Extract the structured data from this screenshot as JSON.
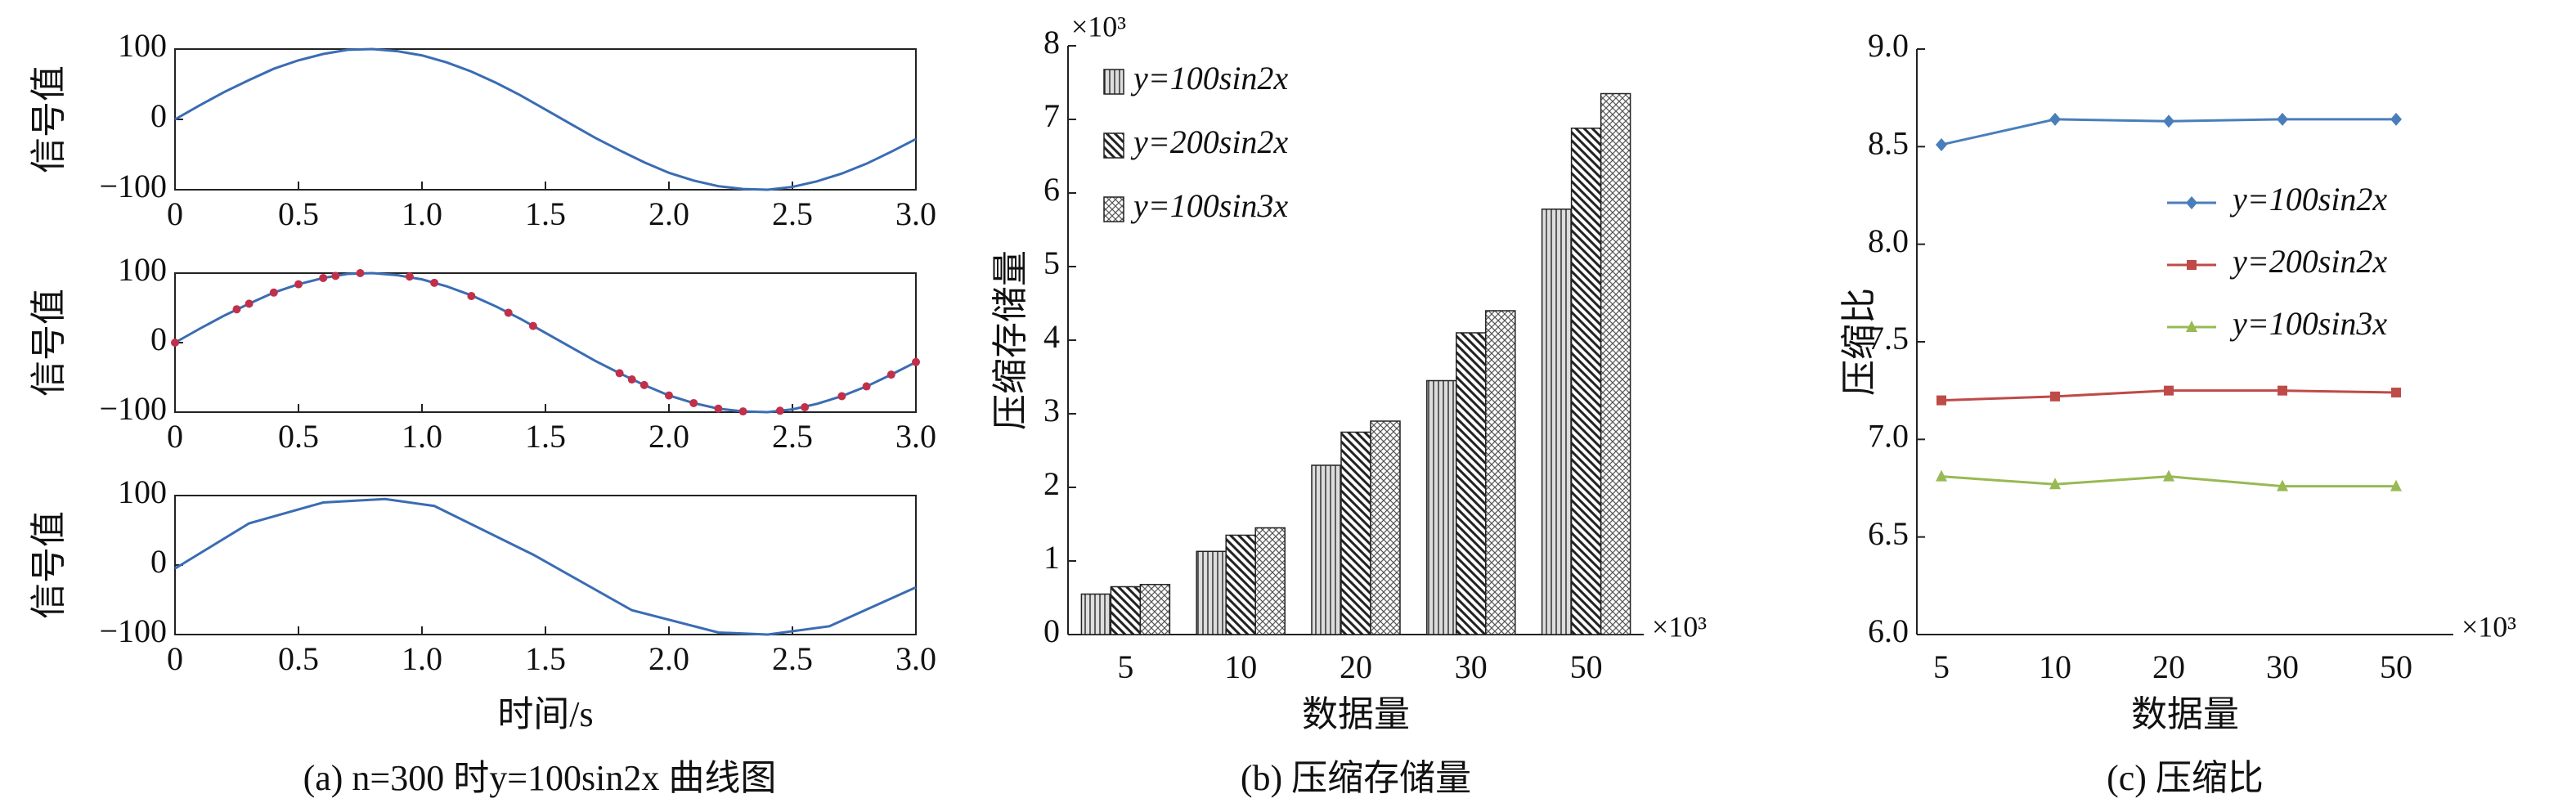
{
  "chart_data": [
    {
      "type": "line",
      "ylabel": "信号值",
      "xlim": [
        0,
        3
      ],
      "xticks": [
        0,
        0.5,
        {
          "value": 1,
          "label": "1.0"
        },
        1.5,
        {
          "value": 2,
          "label": "2.0"
        },
        2.5,
        {
          "value": 3,
          "label": "3.0"
        }
      ],
      "ylim": [
        -100,
        100
      ],
      "yticks": [
        {
          "value": -100,
          "label": "−100"
        },
        0,
        100
      ],
      "series": [
        {
          "color": "#3a6cb4",
          "x": [
            0,
            0.1,
            0.2,
            0.3,
            0.4,
            0.5,
            0.6,
            0.7,
            0.8,
            0.9,
            1,
            1.1,
            1.2,
            1.3,
            1.4,
            1.5,
            1.6,
            1.7,
            1.8,
            1.9,
            2,
            2.1,
            2.2,
            2.3,
            2.4,
            2.5,
            2.6,
            2.7,
            2.8,
            2.9,
            3
          ],
          "values": [
            0,
            20,
            39,
            56,
            72,
            84,
            93,
            99,
            100,
            97,
            91,
            81,
            68,
            52,
            34,
            14,
            -6,
            -26,
            -44,
            -61,
            -76,
            -87,
            -95,
            -99,
            -100,
            -96,
            -88,
            -77,
            -63,
            -46,
            -28
          ]
        }
      ]
    },
    {
      "type": "line",
      "ylabel": "信号值",
      "xlim": [
        0,
        3
      ],
      "xticks": [
        0,
        0.5,
        {
          "value": 1,
          "label": "1.0"
        },
        1.5,
        {
          "value": 2,
          "label": "2.0"
        },
        2.5,
        {
          "value": 3,
          "label": "3.0"
        }
      ],
      "ylim": [
        -100,
        100
      ],
      "yticks": [
        {
          "value": -100,
          "label": "−100"
        },
        0,
        100
      ],
      "series": [
        {
          "color": "#3a6cb4",
          "x": [
            0,
            0.1,
            0.2,
            0.3,
            0.4,
            0.5,
            0.6,
            0.7,
            0.8,
            0.9,
            1,
            1.1,
            1.2,
            1.3,
            1.4,
            1.5,
            1.6,
            1.7,
            1.8,
            1.9,
            2,
            2.1,
            2.2,
            2.3,
            2.4,
            2.5,
            2.6,
            2.7,
            2.8,
            2.9,
            3
          ],
          "values": [
            0,
            20,
            39,
            56,
            72,
            84,
            93,
            99,
            100,
            97,
            91,
            81,
            68,
            52,
            34,
            14,
            -6,
            -26,
            -44,
            -61,
            -76,
            -87,
            -95,
            -99,
            -100,
            -96,
            -88,
            -77,
            -63,
            -46,
            -28
          ]
        },
        {
          "color": "#c0304a",
          "line": false,
          "marker": "dot",
          "x": [
            0,
            0.25,
            0.3,
            0.4,
            0.5,
            0.6,
            0.65,
            0.75,
            0.95,
            1.05,
            1.2,
            1.35,
            1.45,
            1.8,
            1.85,
            1.9,
            2,
            2.1,
            2.2,
            2.3,
            2.45,
            2.55,
            2.7,
            2.8,
            2.9,
            3
          ],
          "values": [
            0,
            48,
            56,
            72,
            84,
            93,
            96,
            100,
            95,
            86,
            67,
            43,
            24,
            -44,
            -53,
            -61,
            -76,
            -87,
            -95,
            -99,
            -98,
            -93,
            -77,
            -63,
            -46,
            -28
          ]
        }
      ]
    },
    {
      "type": "line",
      "ylabel": "信号值",
      "xlabel": "时间/s",
      "caption": "(a) n=300 时y=100sin2x 曲线图",
      "xlim": [
        0,
        3
      ],
      "xticks": [
        0,
        0.5,
        {
          "value": 1,
          "label": "1.0"
        },
        1.5,
        {
          "value": 2,
          "label": "2.0"
        },
        2.5,
        {
          "value": 3,
          "label": "3.0"
        }
      ],
      "ylim": [
        -100,
        100
      ],
      "yticks": [
        {
          "value": -100,
          "label": "−100"
        },
        0,
        100
      ],
      "series": [
        {
          "color": "#3a6cb4",
          "x": [
            0,
            0.3,
            0.6,
            0.85,
            1.05,
            1.45,
            1.85,
            2.2,
            2.4,
            2.65,
            3
          ],
          "values": [
            -5,
            60,
            90,
            95,
            85,
            15,
            -65,
            -97,
            -100,
            -88,
            -32
          ]
        }
      ]
    },
    {
      "type": "bar",
      "xlabel": "数据量",
      "ylabel": "压缩存储量",
      "caption": "(b) 压缩存储量",
      "y_unit": "×10³",
      "x_unit": "×10³",
      "categories": [
        "5",
        "10",
        "20",
        "30",
        "50"
      ],
      "ylim": [
        0,
        8
      ],
      "yticks": [
        0,
        1,
        2,
        3,
        4,
        5,
        6,
        7,
        8
      ],
      "legend": "upper left",
      "series": [
        {
          "name": "y=100sin2x",
          "hatch": "vertical",
          "values": [
            0.55,
            1.13,
            2.3,
            3.45,
            5.78
          ]
        },
        {
          "name": "y=200sin2x",
          "hatch": "backslash",
          "values": [
            0.65,
            1.35,
            2.75,
            4.1,
            6.88
          ]
        },
        {
          "name": "y=100sin3x",
          "hatch": "cross",
          "values": [
            0.68,
            1.45,
            2.9,
            4.4,
            7.35
          ]
        }
      ]
    },
    {
      "type": "line",
      "xlabel": "数据量",
      "ylabel": "压缩比",
      "caption": "(c) 压缩比",
      "x_unit": "×10³",
      "categories": [
        "5",
        "10",
        "20",
        "30",
        "50"
      ],
      "ylim": [
        6,
        9
      ],
      "yticks": [
        {
          "value": 6,
          "label": "6.0"
        },
        6.5,
        {
          "value": 7,
          "label": "7.0"
        },
        7.5,
        {
          "value": 8,
          "label": "8.0"
        },
        8.5,
        {
          "value": 9,
          "label": "9.0"
        }
      ],
      "legend": "right",
      "series": [
        {
          "name": "y=100sin2x",
          "color": "#4a7ebb",
          "marker": "diamond",
          "values": [
            8.51,
            8.64,
            8.63,
            8.64,
            8.64
          ]
        },
        {
          "name": "y=200sin2x",
          "color": "#be4b48",
          "marker": "square",
          "values": [
            7.2,
            7.22,
            7.25,
            7.25,
            7.24
          ]
        },
        {
          "name": "y=100sin3x",
          "color": "#98b954",
          "marker": "triangle",
          "values": [
            6.81,
            6.77,
            6.81,
            6.76,
            6.76
          ]
        }
      ]
    }
  ]
}
